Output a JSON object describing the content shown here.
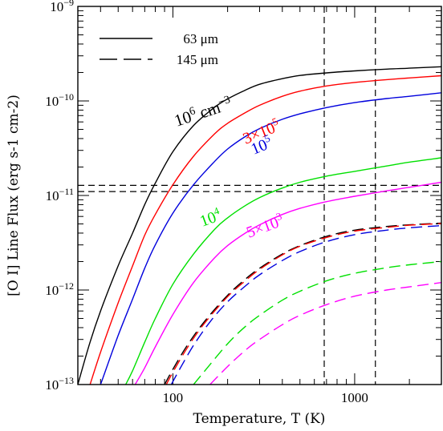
{
  "chart_data": {
    "type": "line",
    "xlabel": "Temperature, T (K)",
    "ylabel": "[O I] Line Flux (erg s-1 cm-2)",
    "xscale": "log",
    "yscale": "log",
    "xlim": [
      30,
      3000
    ],
    "ylim": [
      1e-13,
      1e-09
    ],
    "x_tick_labels": [
      {
        "value": 100,
        "label": "100"
      },
      {
        "value": 1000,
        "label": "1000"
      }
    ],
    "y_tick_labels": [
      {
        "value": 1e-13,
        "base": "10",
        "exp": "−13"
      },
      {
        "value": 1e-12,
        "base": "10",
        "exp": "−12"
      },
      {
        "value": 1e-11,
        "base": "10",
        "exp": "−11"
      },
      {
        "value": 1e-10,
        "base": "10",
        "exp": "−10"
      },
      {
        "value": 1e-09,
        "base": "10",
        "exp": "−9"
      }
    ],
    "legend": {
      "placement": "top-left",
      "entries": [
        {
          "label": "63 μm",
          "style": "solid"
        },
        {
          "label": "145 μm",
          "style": "dashed"
        }
      ]
    },
    "reference_lines": {
      "vertical_x": [
        680,
        1300
      ],
      "horizontal_y": [
        1.28e-11,
        1.1e-11
      ],
      "style": "dashed",
      "color": "#000000"
    },
    "series_labels": [
      {
        "text": "10",
        "sup": "6",
        "suffix": " cm",
        "suffix_sup": "−3",
        "color": "#000000"
      },
      {
        "text": "3×10",
        "sup": "5",
        "suffix": "",
        "suffix_sup": "",
        "color": "#ff0000"
      },
      {
        "text": "10",
        "sup": "5",
        "suffix": "",
        "suffix_sup": "",
        "color": "#0000dd"
      },
      {
        "text": "10",
        "sup": "4",
        "suffix": "",
        "suffix_sup": "",
        "color": "#00e000"
      },
      {
        "text": "5×10",
        "sup": "3",
        "suffix": "",
        "suffix_sup": "",
        "color": "#ff00ff"
      }
    ],
    "series": [
      {
        "density": "1e6",
        "line": "63 μm",
        "color": "#000000",
        "style": "solid",
        "x": [
          30,
          35,
          40,
          50,
          60,
          70,
          80,
          100,
          130,
          170,
          200,
          250,
          300,
          400,
          500,
          700,
          1000,
          1500,
          2000,
          3000
        ],
        "y": [
          1e-13,
          2.8e-13,
          6e-13,
          1.8e-12,
          4e-12,
          8e-12,
          1.35e-11,
          2.9e-11,
          5.5e-11,
          8.6e-11,
          1.05e-10,
          1.3e-10,
          1.5e-10,
          1.72e-10,
          1.86e-10,
          1.98e-10,
          2.08e-10,
          2.17e-10,
          2.22e-10,
          2.3e-10
        ]
      },
      {
        "density": "3e5",
        "line": "63 μm",
        "color": "#ff0000",
        "style": "solid",
        "x": [
          35,
          40,
          50,
          60,
          70,
          80,
          100,
          130,
          170,
          200,
          250,
          300,
          400,
          500,
          700,
          1000,
          1500,
          2000,
          3000
        ],
        "y": [
          1e-13,
          2.2e-13,
          7.3e-13,
          1.8e-12,
          3.8e-12,
          6.3e-12,
          1.3e-11,
          2.6e-11,
          4.5e-11,
          5.8e-11,
          7.5e-11,
          9e-11,
          1.12e-10,
          1.27e-10,
          1.44e-10,
          1.57e-10,
          1.68e-10,
          1.75e-10,
          1.85e-10
        ]
      },
      {
        "density": "1e5",
        "line": "63 μm",
        "color": "#0000dd",
        "style": "solid",
        "x": [
          40,
          50,
          60,
          70,
          80,
          100,
          130,
          170,
          200,
          250,
          300,
          400,
          500,
          700,
          1000,
          1500,
          2000,
          3000
        ],
        "y": [
          1e-13,
          3.3e-13,
          8e-13,
          1.7e-12,
          3e-12,
          6.5e-12,
          1.3e-11,
          2.3e-11,
          3.1e-11,
          4.2e-11,
          5.1e-11,
          6.4e-11,
          7.3e-11,
          8.5e-11,
          9.6e-11,
          1.06e-10,
          1.12e-10,
          1.22e-10
        ]
      },
      {
        "density": "1e4",
        "line": "63 μm",
        "color": "#00e000",
        "style": "solid",
        "x": [
          55,
          60,
          70,
          80,
          100,
          130,
          170,
          200,
          250,
          300,
          400,
          500,
          700,
          1000,
          1500,
          2000,
          3000
        ],
        "y": [
          1e-13,
          1.4e-13,
          2.8e-13,
          5e-13,
          1.15e-12,
          2.4e-12,
          4.4e-12,
          5.8e-12,
          7.8e-12,
          9.5e-12,
          1.2e-11,
          1.38e-11,
          1.6e-11,
          1.8e-11,
          2.05e-11,
          2.25e-11,
          2.5e-11
        ]
      },
      {
        "density": "5e3",
        "line": "63 μm",
        "color": "#ff00ff",
        "style": "solid",
        "x": [
          62,
          70,
          80,
          100,
          130,
          170,
          200,
          250,
          300,
          400,
          500,
          700,
          1000,
          1500,
          2000,
          3000
        ],
        "y": [
          1e-13,
          1.5e-13,
          2.5e-13,
          5.5e-13,
          1.2e-12,
          2.2e-12,
          2.95e-12,
          4e-12,
          4.9e-12,
          6.3e-12,
          7.3e-12,
          8.6e-12,
          9.8e-12,
          1.12e-11,
          1.22e-11,
          1.38e-11
        ]
      },
      {
        "density": "1e6",
        "line": "145 μm",
        "color": "#000000",
        "style": "dashed",
        "x": [
          90,
          100,
          120,
          150,
          200,
          250,
          300,
          400,
          500,
          700,
          1000,
          1500,
          2000,
          3000
        ],
        "y": [
          1e-13,
          1.45e-13,
          2.6e-13,
          4.7e-13,
          8.8e-13,
          1.3e-12,
          1.7e-12,
          2.4e-12,
          2.95e-12,
          3.7e-12,
          4.3e-12,
          4.7e-12,
          4.9e-12,
          5.1e-12
        ]
      },
      {
        "density": "3e5",
        "line": "145 μm",
        "color": "#ff0000",
        "style": "dashed",
        "x": [
          92,
          100,
          120,
          150,
          200,
          250,
          300,
          400,
          500,
          700,
          1000,
          1500,
          2000,
          3000
        ],
        "y": [
          1e-13,
          1.35e-13,
          2.45e-13,
          4.5e-13,
          8.5e-13,
          1.25e-12,
          1.65e-12,
          2.35e-12,
          2.9e-12,
          3.6e-12,
          4.2e-12,
          4.6e-12,
          4.85e-12,
          5.05e-12
        ]
      },
      {
        "density": "1e5",
        "line": "145 μm",
        "color": "#0000dd",
        "style": "dashed",
        "x": [
          98,
          110,
          130,
          160,
          200,
          250,
          300,
          400,
          500,
          700,
          1000,
          1500,
          2000,
          3000
        ],
        "y": [
          1e-13,
          1.5e-13,
          2.6e-13,
          4.6e-13,
          7.5e-13,
          1.1e-12,
          1.45e-12,
          2.05e-12,
          2.55e-12,
          3.25e-12,
          3.85e-12,
          4.3e-12,
          4.55e-12,
          4.8e-12
        ]
      },
      {
        "density": "1e4",
        "line": "145 μm",
        "color": "#00e000",
        "style": "dashed",
        "x": [
          130,
          150,
          200,
          250,
          300,
          400,
          500,
          700,
          1000,
          1500,
          2000,
          3000
        ],
        "y": [
          1e-13,
          1.4e-13,
          2.7e-13,
          4.1e-13,
          5.4e-13,
          7.8e-13,
          9.7e-13,
          1.25e-12,
          1.5e-12,
          1.72e-12,
          1.85e-12,
          2e-12
        ]
      },
      {
        "density": "5e3",
        "line": "145 μm",
        "color": "#ff00ff",
        "style": "dashed",
        "x": [
          160,
          200,
          250,
          300,
          400,
          500,
          700,
          1000,
          1500,
          2000,
          3000
        ],
        "y": [
          1e-13,
          1.55e-13,
          2.3e-13,
          3e-13,
          4.3e-13,
          5.4e-13,
          7e-13,
          8.6e-13,
          1e-12,
          1.08e-12,
          1.2e-12
        ]
      }
    ]
  }
}
